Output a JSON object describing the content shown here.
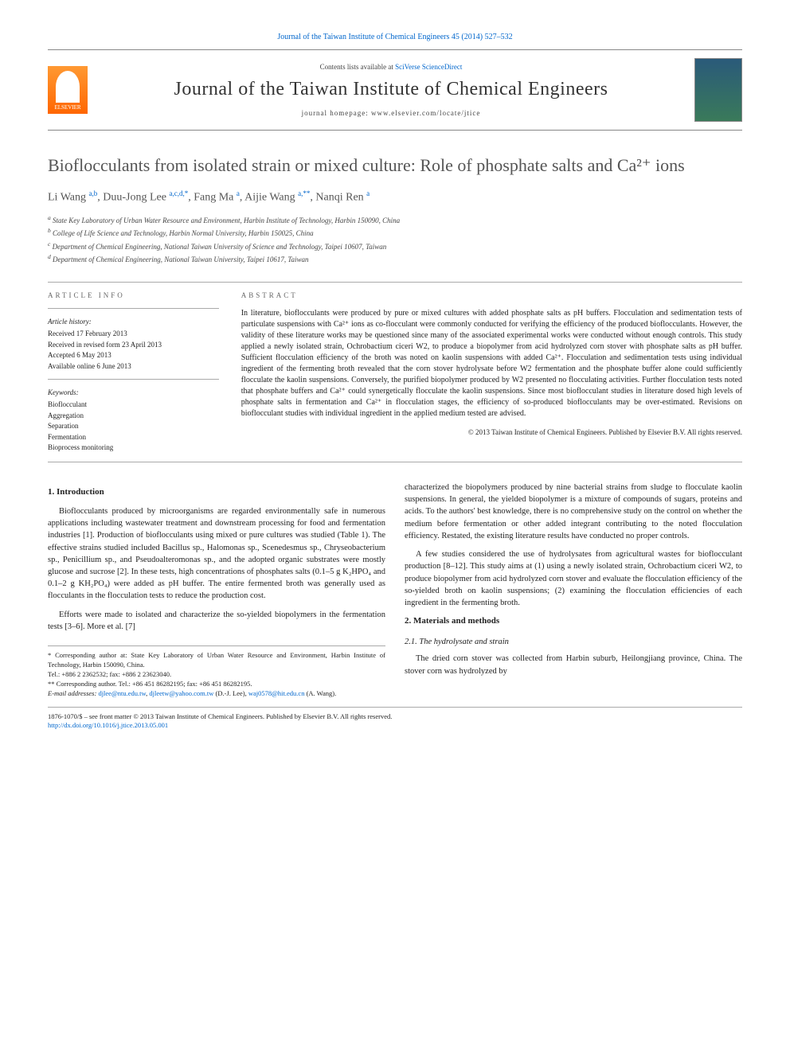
{
  "top_citation": "Journal of the Taiwan Institute of Chemical Engineers 45 (2014) 527–532",
  "header": {
    "contents_prefix": "Contents lists available at ",
    "contents_link": "SciVerse ScienceDirect",
    "journal_title": "Journal of the Taiwan Institute of Chemical Engineers",
    "homepage_label": "journal homepage: www.elsevier.com/locate/jtice",
    "publisher_logo_label": "ELSEVIER"
  },
  "title": "Bioflocculants from isolated strain or mixed culture: Role of phosphate salts and Ca²⁺ ions",
  "authors_html": "Li Wang <sup>a,b</sup>, Duu-Jong Lee <sup>a,c,d,*</sup>, Fang Ma <sup>a</sup>, Aijie Wang <sup>a,**</sup>, Nanqi Ren <sup>a</sup>",
  "affiliations": [
    "a State Key Laboratory of Urban Water Resource and Environment, Harbin Institute of Technology, Harbin 150090, China",
    "b College of Life Science and Technology, Harbin Normal University, Harbin 150025, China",
    "c Department of Chemical Engineering, National Taiwan University of Science and Technology, Taipei 10607, Taiwan",
    "d Department of Chemical Engineering, National Taiwan University, Taipei 10617, Taiwan"
  ],
  "article_info": {
    "head": "ARTICLE INFO",
    "history_label": "Article history:",
    "history": [
      "Received 17 February 2013",
      "Received in revised form 23 April 2013",
      "Accepted 6 May 2013",
      "Available online 6 June 2013"
    ],
    "keywords_label": "Keywords:",
    "keywords": [
      "Bioflocculant",
      "Aggregation",
      "Separation",
      "Fermentation",
      "Bioprocess monitoring"
    ]
  },
  "abstract": {
    "head": "ABSTRACT",
    "text": "In literature, bioflocculants were produced by pure or mixed cultures with added phosphate salts as pH buffers. Flocculation and sedimentation tests of particulate suspensions with Ca²⁺ ions as co-flocculant were commonly conducted for verifying the efficiency of the produced bioflocculants. However, the validity of these literature works may be questioned since many of the associated experimental works were conducted without enough controls. This study applied a newly isolated strain, Ochrobactium ciceri W2, to produce a biopolymer from acid hydrolyzed corn stover with phosphate salts as pH buffer. Sufficient flocculation efficiency of the broth was noted on kaolin suspensions with added Ca²⁺. Flocculation and sedimentation tests using individual ingredient of the fermenting broth revealed that the corn stover hydrolysate before W2 fermentation and the phosphate buffer alone could sufficiently flocculate the kaolin suspensions. Conversely, the purified biopolymer produced by W2 presented no flocculating activities. Further flocculation tests noted that phosphate buffers and Ca²⁺ could synergetically flocculate the kaolin suspensions. Since most bioflocculant studies in literature dosed high levels of phosphate salts in fermentation and Ca²⁺ in flocculation stages, the efficiency of so-produced bioflocculants may be over-estimated. Revisions on bioflocculant studies with individual ingredient in the applied medium tested are advised.",
    "copyright": "© 2013 Taiwan Institute of Chemical Engineers. Published by Elsevier B.V. All rights reserved."
  },
  "body": {
    "s1_head": "1. Introduction",
    "s1_p1": "Bioflocculants produced by microorganisms are regarded environmentally safe in numerous applications including wastewater treatment and downstream processing for food and fermentation industries [1]. Production of bioflocculants using mixed or pure cultures was studied (Table 1). The effective strains studied included Bacillus sp., Halomonas sp., Scenedesmus sp., Chryseobacterium sp., Penicillium sp., and Pseudoalteromonas sp., and the adopted organic substrates were mostly glucose and sucrose [2]. In these tests, high concentrations of phosphates salts (0.1–5 g K₂HPO₄ and 0.1–2 g KH₂PO₄) were added as pH buffer. The entire fermented broth was generally used as flocculants in the flocculation tests to reduce the production cost.",
    "s1_p2": "Efforts were made to isolated and characterize the so-yielded biopolymers in the fermentation tests [3–6]. More et al. [7]",
    "s1_p3": "characterized the biopolymers produced by nine bacterial strains from sludge to flocculate kaolin suspensions. In general, the yielded biopolymer is a mixture of compounds of sugars, proteins and acids. To the authors' best knowledge, there is no comprehensive study on the control on whether the medium before fermentation or other added integrant contributing to the noted flocculation efficiency. Restated, the existing literature results have conducted no proper controls.",
    "s1_p4": "A few studies considered the use of hydrolysates from agricultural wastes for bioflocculant production [8–12]. This study aims at (1) using a newly isolated strain, Ochrobactium ciceri W2, to produce biopolymer from acid hydrolyzed corn stover and evaluate the flocculation efficiency of the so-yielded broth on kaolin suspensions; (2) examining the flocculation efficiencies of each ingredient in the fermenting broth.",
    "s2_head": "2. Materials and methods",
    "s21_head": "2.1. The hydrolysate and strain",
    "s21_p1": "The dried corn stover was collected from Harbin suburb, Heilongjiang province, China. The stover corn was hydrolyzed by"
  },
  "corresponding": {
    "l1": "* Corresponding author at: State Key Laboratory of Urban Water Resource and Environment, Harbin Institute of Technology, Harbin 150090, China.",
    "l2": "Tel.: +886 2 2362532; fax: +886 2 23623040.",
    "l3": "** Corresponding author. Tel.: +86 451 86282195; fax: +86 451 86282195.",
    "emails_label": "E-mail addresses: ",
    "email1": "djlee@ntu.edu.tw",
    "email2": "djleetw@yahoo.com.tw",
    "email_person1": " (D.-J. Lee),",
    "email3": "waj0578@hit.edu.cn",
    "email_person2": " (A. Wang)."
  },
  "footer": {
    "issn_line": "1876-1070/$ – see front matter © 2013 Taiwan Institute of Chemical Engineers. Published by Elsevier B.V. All rights reserved.",
    "doi": "http://dx.doi.org/10.1016/j.jtice.2013.05.001"
  },
  "colors": {
    "link": "#0066cc",
    "text": "#222222",
    "muted": "#666666",
    "rule": "#aaaaaa"
  }
}
